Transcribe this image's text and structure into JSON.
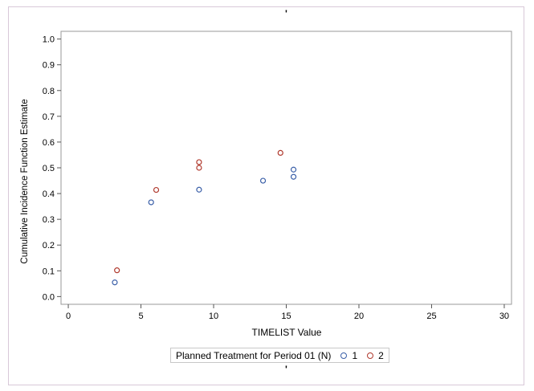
{
  "chart_data": {
    "type": "scatter",
    "title": "'",
    "footnote": "'",
    "xlabel": "TIMELIST Value",
    "ylabel": "Cumulative Incidence Function Estimate",
    "xlim": [
      -0.5,
      30.5
    ],
    "ylim": [
      -0.03,
      1.03
    ],
    "xticks": [
      0,
      5,
      10,
      15,
      20,
      25,
      30
    ],
    "yticks": [
      0.0,
      0.1,
      0.2,
      0.3,
      0.4,
      0.5,
      0.6,
      0.7,
      0.8,
      0.9,
      1.0
    ],
    "ytick_labels": [
      "0.0",
      "0.1",
      "0.2",
      "0.3",
      "0.4",
      "0.5",
      "0.6",
      "0.7",
      "0.8",
      "0.9",
      "1.0"
    ],
    "grid": false,
    "legend": {
      "title": "Planned Treatment for Period 01 (N)",
      "placement": "bottom"
    },
    "series": [
      {
        "name": "1",
        "color": "#3a5fa8",
        "points": [
          {
            "x": 3.2,
            "y": 0.055
          },
          {
            "x": 5.7,
            "y": 0.366
          },
          {
            "x": 9.0,
            "y": 0.415
          },
          {
            "x": 13.4,
            "y": 0.45
          },
          {
            "x": 15.5,
            "y": 0.465
          },
          {
            "x": 15.5,
            "y": 0.493
          }
        ]
      },
      {
        "name": "2",
        "color": "#b03a2e",
        "points": [
          {
            "x": 3.35,
            "y": 0.102
          },
          {
            "x": 6.05,
            "y": 0.414
          },
          {
            "x": 9.0,
            "y": 0.5
          },
          {
            "x": 9.0,
            "y": 0.522
          },
          {
            "x": 14.6,
            "y": 0.558
          }
        ]
      }
    ]
  }
}
